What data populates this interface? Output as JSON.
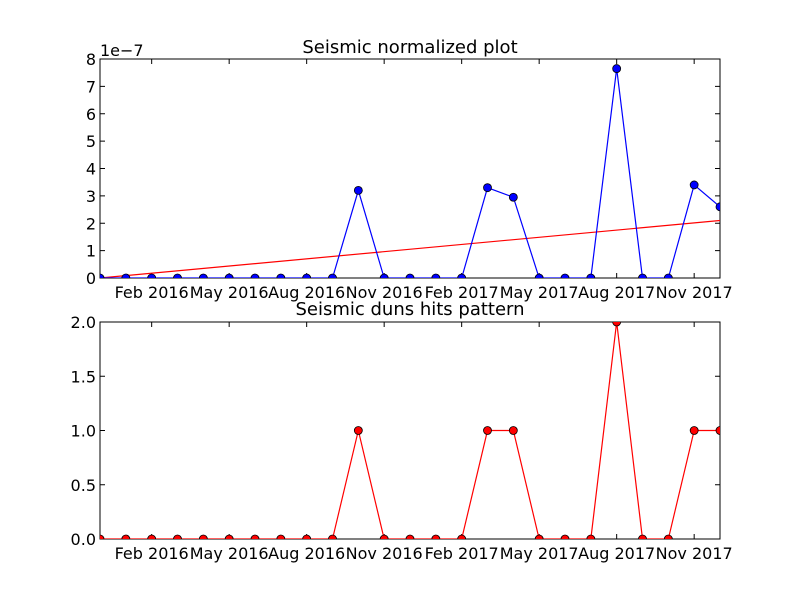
{
  "chart_data": [
    {
      "type": "line",
      "title": "Seismic normalized plot",
      "xlabel": "",
      "ylabel": "",
      "offset_text": "1e−7",
      "x_ticks": [
        "Feb 2016",
        "May 2016",
        "Aug 2016",
        "Nov 2016",
        "Feb 2017",
        "May 2017",
        "Aug 2017",
        "Nov 2017"
      ],
      "y_ticks": [
        "0",
        "1",
        "2",
        "3",
        "4",
        "5",
        "6",
        "7",
        "8"
      ],
      "ylim": [
        0,
        8
      ],
      "x": [
        "2015-12-01",
        "2016-01-01",
        "2016-02-01",
        "2016-03-01",
        "2016-04-01",
        "2016-05-01",
        "2016-06-01",
        "2016-07-01",
        "2016-08-01",
        "2016-09-01",
        "2016-10-01",
        "2016-11-01",
        "2016-12-01",
        "2017-01-01",
        "2017-02-01",
        "2017-03-01",
        "2017-04-01",
        "2017-05-01",
        "2017-06-01",
        "2017-07-01",
        "2017-08-01",
        "2017-09-01",
        "2017-10-01",
        "2017-11-01",
        "2017-12-01"
      ],
      "series": [
        {
          "color": "#0000ff",
          "marker": "circle",
          "values": [
            0,
            0,
            0,
            0,
            0,
            0,
            0,
            0,
            0,
            0,
            3.2,
            0,
            0,
            0,
            0,
            3.3,
            2.95,
            0,
            0,
            0,
            7.65,
            0,
            0,
            3.4,
            2.6
          ]
        }
      ],
      "trend_line": {
        "color": "#ff0000",
        "start_value": 0,
        "end_value": 2.1
      }
    },
    {
      "type": "line",
      "title": "Seismic duns hits pattern",
      "xlabel": "",
      "ylabel": "",
      "x_ticks": [
        "Feb 2016",
        "May 2016",
        "Aug 2016",
        "Nov 2016",
        "Feb 2017",
        "May 2017",
        "Aug 2017",
        "Nov 2017"
      ],
      "y_ticks": [
        "0.0",
        "0.5",
        "1.0",
        "1.5",
        "2.0"
      ],
      "ylim": [
        0,
        2
      ],
      "x": [
        "2015-12-01",
        "2016-01-01",
        "2016-02-01",
        "2016-03-01",
        "2016-04-01",
        "2016-05-01",
        "2016-06-01",
        "2016-07-01",
        "2016-08-01",
        "2016-09-01",
        "2016-10-01",
        "2016-11-01",
        "2016-12-01",
        "2017-01-01",
        "2017-02-01",
        "2017-03-01",
        "2017-04-01",
        "2017-05-01",
        "2017-06-01",
        "2017-07-01",
        "2017-08-01",
        "2017-09-01",
        "2017-10-01",
        "2017-11-01",
        "2017-12-01"
      ],
      "series": [
        {
          "color": "#ff0000",
          "marker": "circle",
          "values": [
            0,
            0,
            0,
            0,
            0,
            0,
            0,
            0,
            0,
            0,
            1,
            0,
            0,
            0,
            0,
            1,
            1,
            0,
            0,
            0,
            2,
            0,
            0,
            1,
            1
          ]
        }
      ]
    }
  ]
}
